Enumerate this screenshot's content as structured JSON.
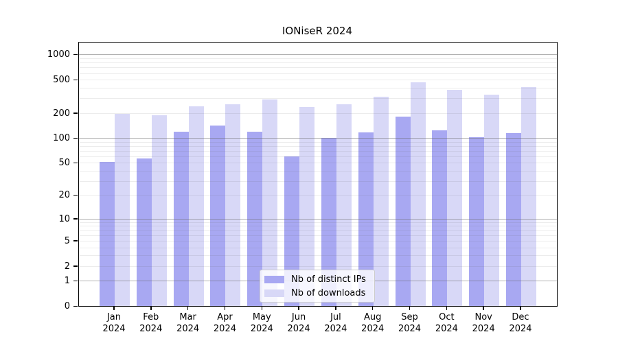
{
  "chart_data": {
    "type": "bar",
    "title": "IONiseR 2024",
    "scale": "log1p",
    "categories": [
      "Jan",
      "Feb",
      "Mar",
      "Apr",
      "May",
      "Jun",
      "Jul",
      "Aug",
      "Sep",
      "Oct",
      "Nov",
      "Dec"
    ],
    "category_year": "2024",
    "series": [
      {
        "name": "Nb of distinct IPs",
        "color": "#a8a8f2",
        "values": [
          51,
          57,
          119,
          142,
          120,
          60,
          100,
          117,
          180,
          124,
          102,
          115
        ]
      },
      {
        "name": "Nb of downloads",
        "color": "#d8d8f7",
        "values": [
          196,
          189,
          240,
          255,
          290,
          236,
          253,
          315,
          464,
          377,
          332,
          408
        ]
      }
    ],
    "y_ticks": [
      0,
      1,
      2,
      5,
      10,
      20,
      50,
      100,
      200,
      500,
      1000
    ],
    "ylim": [
      0,
      1390
    ],
    "xlabel": "",
    "ylabel": "",
    "grid": "major and minor horizontal gridlines drawn over bars",
    "legend_position": "bottom-center-inside"
  }
}
